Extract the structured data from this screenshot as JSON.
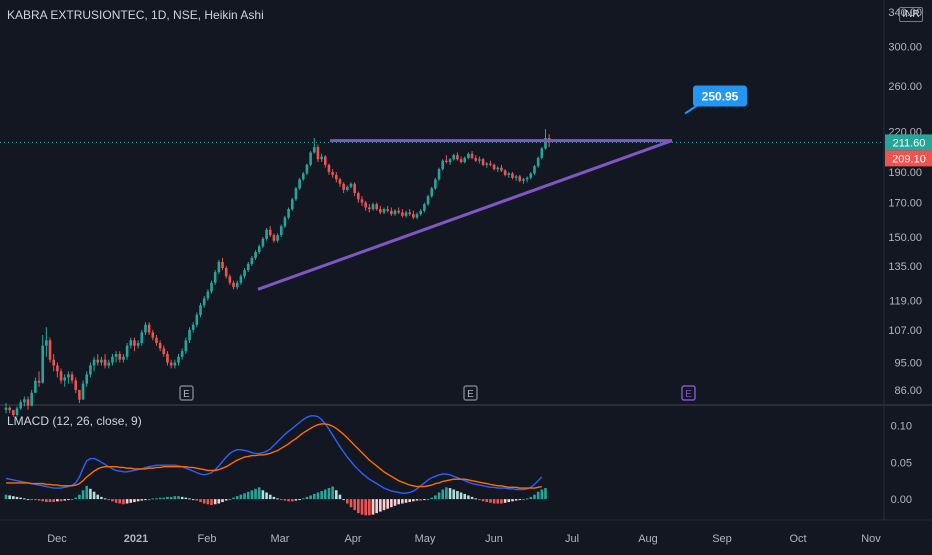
{
  "header": {
    "symbol": "KABRA EXTRUSIONTEC, 1D, NSE, Heikin Ashi",
    "currency": "INR"
  },
  "indicator": {
    "label": "LMACD (12, 26, close, 9)"
  },
  "colors": {
    "up": "#26a69a",
    "down": "#ef5350",
    "trend": "#7e57c2",
    "macd": "#2962ff",
    "signal": "#ff6d00",
    "callout": "#2196f3"
  },
  "chart_data": {
    "type": "candlestick",
    "price_axis": {
      "scale": "log",
      "ticks": [
        "340.00",
        "300.00",
        "260.00",
        "220.00",
        "190.00",
        "170.00",
        "150.00",
        "135.00",
        "119.00",
        "107.00",
        "95.00",
        "86.00"
      ],
      "range": [
        82,
        345
      ]
    },
    "x_axis": {
      "ticks": [
        "Dec",
        "2021",
        "Feb",
        "Mar",
        "Apr",
        "May",
        "Jun",
        "Jul",
        "Aug",
        "Sep",
        "Oct",
        "Nov"
      ]
    },
    "price_labels": {
      "last": "211.60",
      "prev_close": "209.10"
    },
    "callout": {
      "text": "250.95",
      "value": 250.95
    },
    "earnings_markers": [
      {
        "label": "E",
        "date": "Jan 22",
        "state": "past"
      },
      {
        "label": "E",
        "date": "May 10",
        "state": "past"
      },
      {
        "label": "E",
        "date": "Aug 13",
        "state": "upcoming"
      }
    ],
    "trendlines": [
      {
        "name": "resistance",
        "from": {
          "date": "Mar 21",
          "price": 213
        },
        "to": {
          "date": "Aug 12",
          "price": 213
        }
      },
      {
        "name": "support",
        "from": {
          "date": "Feb 18",
          "price": 124
        },
        "to": {
          "date": "Aug 12",
          "price": 213
        }
      }
    ],
    "candles_ohlc": [
      [
        80,
        82,
        79,
        80.6
      ],
      [
        80.6,
        81,
        79,
        79.9
      ],
      [
        79.9,
        80,
        78,
        78.5
      ],
      [
        78.5,
        81,
        78,
        80.4
      ],
      [
        80.4,
        83,
        80,
        82.2
      ],
      [
        82.2,
        84,
        81,
        83.1
      ],
      [
        83.1,
        84,
        80,
        81.2
      ],
      [
        81.2,
        86,
        81,
        85.1
      ],
      [
        85.1,
        90,
        85,
        88.9
      ],
      [
        88.9,
        92,
        87,
        88.3
      ],
      [
        88.3,
        105,
        88,
        101
      ],
      [
        101,
        108,
        97,
        103
      ],
      [
        103,
        104,
        95,
        96
      ],
      [
        96,
        98,
        92,
        94
      ],
      [
        94,
        95,
        90,
        92
      ],
      [
        92,
        93,
        88,
        89
      ],
      [
        89,
        91,
        87,
        90
      ],
      [
        90,
        92,
        88,
        91
      ],
      [
        91,
        92,
        88,
        89
      ],
      [
        89,
        90,
        85,
        86
      ],
      [
        86,
        86,
        82,
        83
      ],
      [
        83,
        89,
        83,
        88
      ],
      [
        88,
        92,
        87,
        91
      ],
      [
        91,
        95,
        90,
        94
      ],
      [
        94,
        97,
        92,
        96
      ],
      [
        96,
        98,
        94,
        95
      ],
      [
        95,
        97,
        94,
        96
      ],
      [
        96,
        98,
        93,
        94
      ],
      [
        94,
        96,
        93,
        95
      ],
      [
        95,
        98,
        94,
        97
      ],
      [
        97,
        99,
        95,
        98
      ],
      [
        98,
        99,
        95,
        96
      ],
      [
        96,
        98,
        95,
        97
      ],
      [
        97,
        102,
        96,
        101
      ],
      [
        101,
        104,
        100,
        103
      ],
      [
        103,
        104,
        99,
        101
      ],
      [
        101,
        103,
        100,
        102
      ],
      [
        102,
        107,
        101,
        106
      ],
      [
        106,
        110,
        105,
        109
      ],
      [
        109,
        110,
        105,
        106
      ],
      [
        106,
        107,
        103,
        104
      ],
      [
        104,
        105,
        101,
        102
      ],
      [
        102,
        103,
        99,
        100
      ],
      [
        100,
        101,
        97,
        98
      ],
      [
        98,
        99,
        94,
        95
      ],
      [
        95,
        96,
        93,
        94
      ],
      [
        94,
        96,
        93,
        95
      ],
      [
        95,
        98,
        94,
        97
      ],
      [
        97,
        100,
        96,
        99
      ],
      [
        99,
        104,
        98,
        103
      ],
      [
        103,
        108,
        102,
        107
      ],
      [
        107,
        110,
        106,
        109
      ],
      [
        109,
        114,
        108,
        113
      ],
      [
        113,
        118,
        112,
        117
      ],
      [
        117,
        121,
        116,
        120
      ],
      [
        120,
        124,
        119,
        123
      ],
      [
        123,
        128,
        122,
        127
      ],
      [
        127,
        133,
        126,
        132
      ],
      [
        132,
        138,
        131,
        137
      ],
      [
        137,
        139,
        133,
        134
      ],
      [
        134,
        135,
        129,
        130
      ],
      [
        130,
        131,
        126,
        127
      ],
      [
        127,
        128,
        124,
        125
      ],
      [
        125,
        128,
        124,
        127
      ],
      [
        127,
        131,
        126,
        130
      ],
      [
        130,
        134,
        129,
        133
      ],
      [
        133,
        137,
        132,
        136
      ],
      [
        136,
        140,
        135,
        139
      ],
      [
        139,
        143,
        138,
        142
      ],
      [
        142,
        146,
        141,
        145
      ],
      [
        145,
        150,
        144,
        149
      ],
      [
        149,
        155,
        148,
        154
      ],
      [
        154,
        156,
        150,
        151
      ],
      [
        151,
        152,
        147,
        148
      ],
      [
        148,
        152,
        147,
        151
      ],
      [
        151,
        157,
        150,
        156
      ],
      [
        156,
        162,
        155,
        161
      ],
      [
        161,
        167,
        160,
        166
      ],
      [
        166,
        173,
        165,
        172
      ],
      [
        172,
        180,
        171,
        179
      ],
      [
        179,
        186,
        178,
        185
      ],
      [
        185,
        190,
        184,
        189
      ],
      [
        189,
        196,
        188,
        195
      ],
      [
        195,
        205,
        194,
        204
      ],
      [
        204,
        215,
        203,
        208
      ],
      [
        208,
        210,
        197,
        199
      ],
      [
        199,
        203,
        197,
        201
      ],
      [
        201,
        202,
        193,
        195
      ],
      [
        195,
        196,
        188,
        190
      ],
      [
        190,
        192,
        186,
        188
      ],
      [
        188,
        190,
        183,
        185
      ],
      [
        185,
        186,
        180,
        182
      ],
      [
        182,
        183,
        176,
        178
      ],
      [
        178,
        181,
        177,
        180
      ],
      [
        180,
        183,
        179,
        182
      ],
      [
        182,
        183,
        174,
        176
      ],
      [
        176,
        177,
        170,
        172
      ],
      [
        172,
        174,
        168,
        170
      ],
      [
        170,
        171,
        165,
        167
      ],
      [
        167,
        169,
        164,
        166
      ],
      [
        166,
        170,
        165,
        169
      ],
      [
        169,
        170,
        165,
        166
      ],
      [
        166,
        168,
        163,
        164
      ],
      [
        164,
        167,
        163,
        166
      ],
      [
        166,
        168,
        164,
        165
      ],
      [
        165,
        167,
        162,
        163
      ],
      [
        163,
        166,
        162,
        165
      ],
      [
        165,
        167,
        163,
        164
      ],
      [
        164,
        166,
        161,
        162
      ],
      [
        162,
        165,
        161,
        164
      ],
      [
        164,
        166,
        162,
        163
      ],
      [
        163,
        165,
        160,
        161
      ],
      [
        161,
        164,
        160,
        163
      ],
      [
        163,
        166,
        162,
        165
      ],
      [
        165,
        170,
        164,
        169
      ],
      [
        169,
        175,
        168,
        174
      ],
      [
        174,
        180,
        173,
        179
      ],
      [
        179,
        186,
        178,
        185
      ],
      [
        185,
        193,
        184,
        192
      ],
      [
        192,
        199,
        191,
        198
      ],
      [
        198,
        202,
        196,
        197
      ],
      [
        197,
        200,
        195,
        199
      ],
      [
        199,
        203,
        198,
        202
      ],
      [
        202,
        204,
        198,
        199
      ],
      [
        199,
        201,
        196,
        197
      ],
      [
        197,
        201,
        196,
        200
      ],
      [
        200,
        204,
        199,
        203
      ],
      [
        203,
        205,
        199,
        200
      ],
      [
        200,
        202,
        197,
        198
      ],
      [
        198,
        201,
        196,
        199
      ],
      [
        199,
        200,
        194,
        195
      ],
      [
        195,
        197,
        193,
        196
      ],
      [
        196,
        198,
        194,
        195
      ],
      [
        195,
        196,
        191,
        192
      ],
      [
        192,
        194,
        190,
        193
      ],
      [
        193,
        195,
        190,
        191
      ],
      [
        191,
        192,
        187,
        188
      ],
      [
        188,
        190,
        186,
        189
      ],
      [
        189,
        190,
        185,
        186
      ],
      [
        186,
        188,
        184,
        187
      ],
      [
        187,
        188,
        183,
        184
      ],
      [
        184,
        186,
        182,
        185
      ],
      [
        185,
        187,
        183,
        186
      ],
      [
        186,
        190,
        185,
        189
      ],
      [
        189,
        195,
        188,
        194
      ],
      [
        194,
        201,
        193,
        200
      ],
      [
        200,
        208,
        199,
        207
      ],
      [
        207,
        222,
        206,
        215
      ],
      [
        215,
        218,
        208,
        211.6
      ]
    ],
    "macd": {
      "zero_label": "0.00",
      "ticks": [
        "0.10",
        "0.05",
        "0.00"
      ],
      "range": [
        -0.027,
        0.125
      ],
      "histogram": [
        0.006,
        0.005,
        0.004,
        0.003,
        0.002,
        0.001,
        0.0,
        -0.001,
        -0.001,
        -0.002,
        -0.003,
        -0.004,
        -0.004,
        -0.004,
        -0.003,
        -0.003,
        -0.002,
        -0.001,
        0.0,
        0.002,
        0.006,
        0.012,
        0.018,
        0.014,
        0.01,
        0.006,
        0.003,
        0.001,
        -0.001,
        -0.003,
        -0.005,
        -0.006,
        -0.007,
        -0.006,
        -0.005,
        -0.004,
        -0.003,
        -0.002,
        -0.001,
        0.0,
        0.001,
        0.001,
        0.002,
        0.002,
        0.003,
        0.003,
        0.004,
        0.004,
        0.003,
        0.002,
        0.001,
        0.0,
        -0.002,
        -0.004,
        -0.006,
        -0.007,
        -0.008,
        -0.007,
        -0.006,
        -0.004,
        -0.002,
        0.0,
        0.002,
        0.004,
        0.006,
        0.008,
        0.01,
        0.012,
        0.014,
        0.016,
        0.012,
        0.009,
        0.006,
        0.003,
        0.001,
        -0.001,
        -0.002,
        -0.003,
        -0.003,
        -0.002,
        -0.001,
        0.001,
        0.003,
        0.005,
        0.007,
        0.009,
        0.011,
        0.013,
        0.015,
        0.017,
        0.012,
        0.006,
        0.0,
        -0.006,
        -0.011,
        -0.015,
        -0.019,
        -0.021,
        -0.022,
        -0.022,
        -0.021,
        -0.019,
        -0.017,
        -0.015,
        -0.013,
        -0.011,
        -0.009,
        -0.007,
        -0.006,
        -0.005,
        -0.004,
        -0.003,
        -0.002,
        -0.002,
        -0.001,
        0.0,
        0.002,
        0.005,
        0.009,
        0.013,
        0.016,
        0.015,
        0.013,
        0.011,
        0.009,
        0.007,
        0.005,
        0.003,
        0.001,
        -0.001,
        -0.003,
        -0.004,
        -0.005,
        -0.006,
        -0.006,
        -0.006,
        -0.005,
        -0.004,
        -0.003,
        -0.002,
        -0.001,
        0.0,
        0.001,
        0.003,
        0.006,
        0.01,
        0.013,
        0.015
      ],
      "macd_line": [
        0.028,
        0.027,
        0.026,
        0.025,
        0.024,
        0.023,
        0.022,
        0.021,
        0.02,
        0.019,
        0.018,
        0.017,
        0.016,
        0.015,
        0.015,
        0.015,
        0.016,
        0.017,
        0.019,
        0.022,
        0.03,
        0.042,
        0.052,
        0.055,
        0.055,
        0.053,
        0.05,
        0.047,
        0.044,
        0.041,
        0.039,
        0.038,
        0.037,
        0.037,
        0.038,
        0.039,
        0.04,
        0.041,
        0.043,
        0.044,
        0.045,
        0.046,
        0.046,
        0.046,
        0.046,
        0.046,
        0.046,
        0.045,
        0.044,
        0.042,
        0.04,
        0.038,
        0.036,
        0.034,
        0.033,
        0.034,
        0.036,
        0.04,
        0.045,
        0.051,
        0.057,
        0.062,
        0.065,
        0.067,
        0.067,
        0.066,
        0.065,
        0.063,
        0.062,
        0.062,
        0.063,
        0.065,
        0.068,
        0.073,
        0.078,
        0.083,
        0.088,
        0.092,
        0.096,
        0.1,
        0.104,
        0.108,
        0.111,
        0.113,
        0.113,
        0.112,
        0.108,
        0.102,
        0.095,
        0.087,
        0.079,
        0.071,
        0.064,
        0.057,
        0.051,
        0.045,
        0.04,
        0.035,
        0.031,
        0.027,
        0.024,
        0.021,
        0.018,
        0.015,
        0.013,
        0.011,
        0.01,
        0.009,
        0.008,
        0.008,
        0.009,
        0.011,
        0.014,
        0.018,
        0.022,
        0.026,
        0.029,
        0.031,
        0.033,
        0.034,
        0.034,
        0.033,
        0.031,
        0.029,
        0.027,
        0.025,
        0.023,
        0.021,
        0.02,
        0.019,
        0.018,
        0.017,
        0.016,
        0.016,
        0.015,
        0.015,
        0.015,
        0.014,
        0.014,
        0.013,
        0.013,
        0.013,
        0.014,
        0.016,
        0.02,
        0.025,
        0.03
      ],
      "signal_line": [
        0.022,
        0.022,
        0.022,
        0.022,
        0.022,
        0.022,
        0.022,
        0.021,
        0.021,
        0.021,
        0.021,
        0.02,
        0.02,
        0.019,
        0.019,
        0.018,
        0.018,
        0.018,
        0.018,
        0.019,
        0.021,
        0.025,
        0.03,
        0.034,
        0.038,
        0.041,
        0.043,
        0.044,
        0.044,
        0.044,
        0.044,
        0.043,
        0.043,
        0.042,
        0.042,
        0.041,
        0.041,
        0.041,
        0.041,
        0.042,
        0.042,
        0.043,
        0.043,
        0.044,
        0.044,
        0.044,
        0.044,
        0.044,
        0.044,
        0.044,
        0.043,
        0.043,
        0.042,
        0.041,
        0.04,
        0.039,
        0.039,
        0.039,
        0.04,
        0.042,
        0.044,
        0.047,
        0.05,
        0.053,
        0.055,
        0.057,
        0.058,
        0.059,
        0.059,
        0.06,
        0.06,
        0.061,
        0.062,
        0.064,
        0.066,
        0.069,
        0.072,
        0.075,
        0.079,
        0.082,
        0.086,
        0.09,
        0.093,
        0.096,
        0.099,
        0.101,
        0.102,
        0.102,
        0.101,
        0.099,
        0.096,
        0.092,
        0.088,
        0.083,
        0.078,
        0.073,
        0.068,
        0.063,
        0.058,
        0.053,
        0.049,
        0.045,
        0.041,
        0.037,
        0.034,
        0.031,
        0.028,
        0.025,
        0.023,
        0.021,
        0.019,
        0.018,
        0.017,
        0.017,
        0.017,
        0.018,
        0.019,
        0.021,
        0.022,
        0.024,
        0.025,
        0.026,
        0.027,
        0.027,
        0.027,
        0.027,
        0.026,
        0.025,
        0.024,
        0.023,
        0.022,
        0.021,
        0.02,
        0.019,
        0.018,
        0.018,
        0.017,
        0.016,
        0.016,
        0.016,
        0.015,
        0.015,
        0.015,
        0.015,
        0.015,
        0.016,
        0.017
      ]
    }
  }
}
